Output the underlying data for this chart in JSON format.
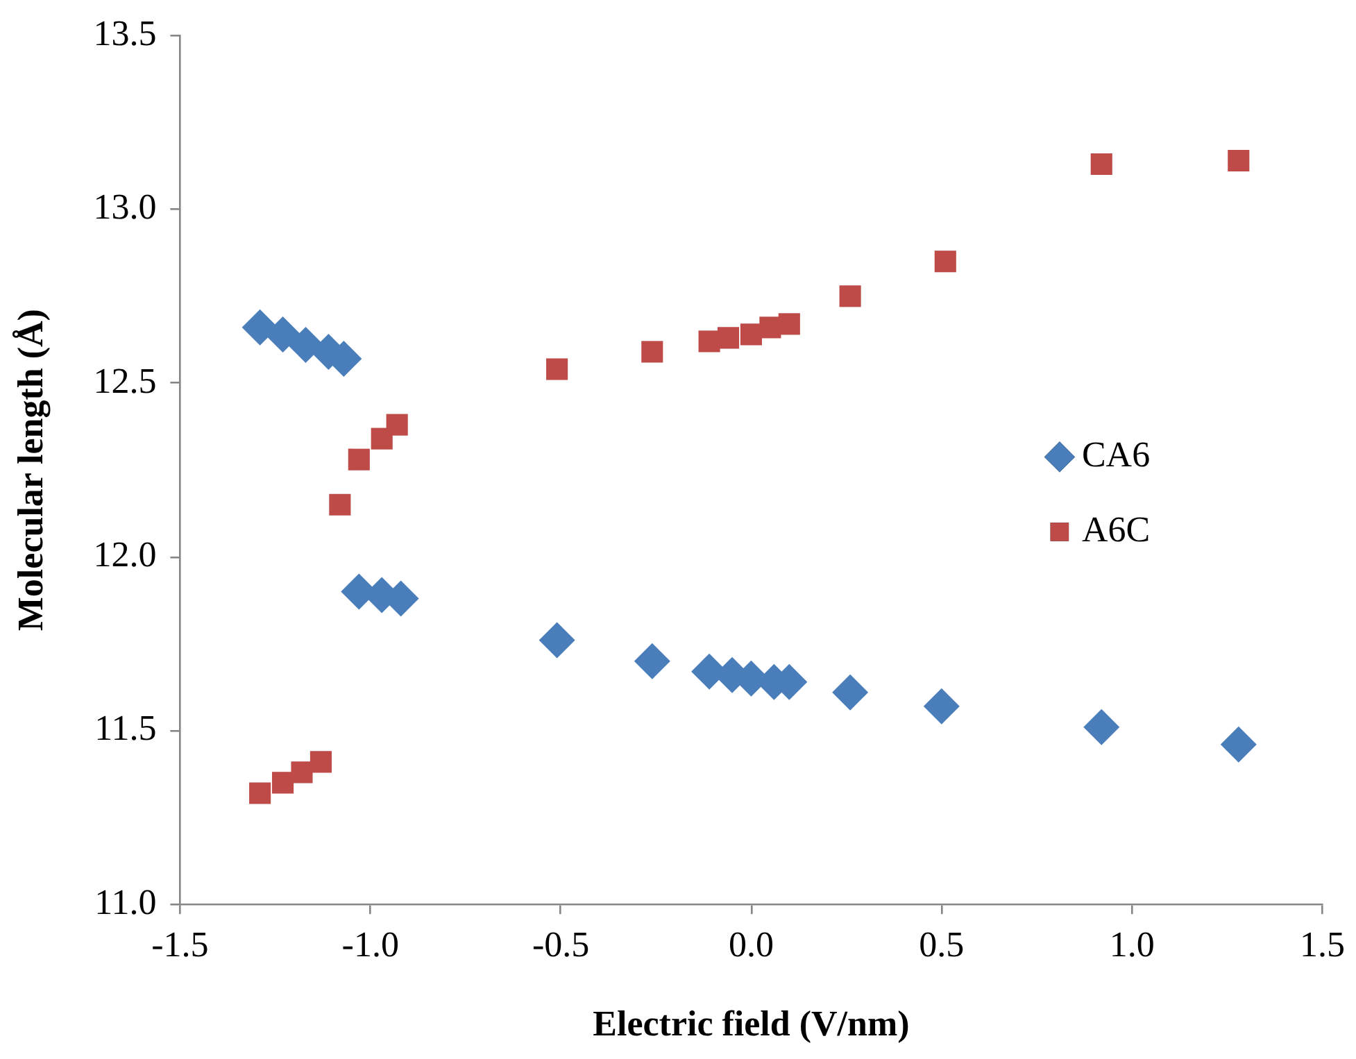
{
  "chart_data": {
    "type": "scatter",
    "xlabel": "Electric field (V/nm)",
    "ylabel": "Molecular length (Å)",
    "xlim": [
      -1.5,
      1.5
    ],
    "xticks": [
      -1.5,
      {
        "value": -1,
        "label": "-1.0"
      },
      -0.5,
      {
        "value": 0,
        "label": "0.0"
      },
      0.5,
      {
        "value": 1,
        "label": "1.0"
      },
      1.5
    ],
    "ylim": [
      11,
      13.5
    ],
    "yticks": [
      {
        "value": 11,
        "label": "11.0"
      },
      11.5,
      {
        "value": 12,
        "label": "12.0"
      },
      12.5,
      {
        "value": 13,
        "label": "13.0"
      },
      13.5
    ],
    "grid": false,
    "legend": "right",
    "series": [
      {
        "name": "CA6",
        "color": "#4a7ebb",
        "marker": "diamond",
        "x": [
          -1.29,
          -1.23,
          -1.17,
          -1.11,
          -1.07,
          -1.03,
          -0.97,
          -0.92,
          -0.51,
          -0.26,
          -0.11,
          -0.05,
          0,
          0.06,
          0.1,
          0.26,
          0.5,
          0.92,
          1.28
        ],
        "values": [
          12.66,
          12.64,
          12.61,
          12.59,
          12.57,
          11.9,
          11.89,
          11.88,
          11.76,
          11.7,
          11.67,
          11.66,
          11.65,
          11.64,
          11.64,
          11.61,
          11.57,
          11.51,
          11.46
        ]
      },
      {
        "name": "A6C",
        "color": "#be4b48",
        "marker": "square",
        "x": [
          -1.29,
          -1.23,
          -1.18,
          -1.13,
          -1.08,
          -1.03,
          -0.97,
          -0.93,
          -0.51,
          -0.26,
          -0.11,
          -0.06,
          0,
          0.05,
          0.1,
          0.26,
          0.51,
          0.92,
          1.28
        ],
        "values": [
          11.32,
          11.35,
          11.38,
          11.41,
          12.15,
          12.28,
          12.34,
          12.38,
          12.54,
          12.59,
          12.62,
          12.63,
          12.64,
          12.66,
          12.67,
          12.75,
          12.85,
          13.13,
          13.14
        ]
      }
    ]
  }
}
